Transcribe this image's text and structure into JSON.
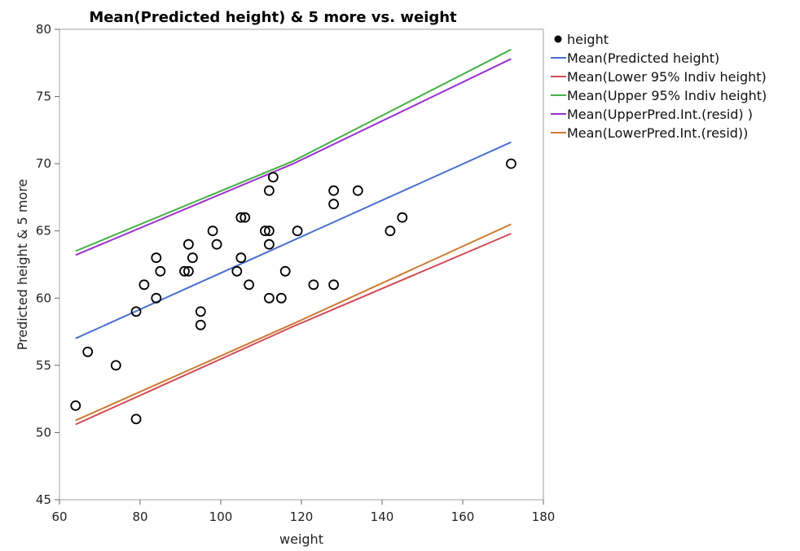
{
  "chart_data": {
    "type": "scatter",
    "title": "Mean(Predicted height) & 5 more vs. weight",
    "xlabel": "weight",
    "ylabel": "Predicted height & 5 more",
    "xlim": [
      60,
      180
    ],
    "ylim": [
      45,
      80
    ],
    "xticks": [
      60,
      80,
      100,
      120,
      140,
      160,
      180
    ],
    "yticks": [
      45,
      50,
      55,
      60,
      65,
      70,
      75,
      80
    ],
    "grid": false,
    "legend_position": "right",
    "series": [
      {
        "name": "height",
        "kind": "points",
        "color": "#000000",
        "x": [
          64,
          67,
          74,
          79,
          79,
          81,
          84,
          84,
          85,
          91,
          92,
          92,
          93,
          95,
          95,
          98,
          99,
          104,
          105,
          105,
          106,
          107,
          111,
          112,
          112,
          112,
          112,
          113,
          115,
          116,
          119,
          123,
          128,
          128,
          128,
          134,
          142,
          145,
          172
        ],
        "y": [
          52,
          56,
          55,
          59,
          51,
          61,
          63,
          60,
          62,
          62,
          64,
          62,
          63,
          59,
          58,
          65,
          64,
          62,
          66,
          63,
          66,
          61,
          65,
          65,
          68,
          64,
          60,
          69,
          60,
          62,
          65,
          61,
          68,
          67,
          61,
          68,
          65,
          66,
          70
        ]
      },
      {
        "name": "Mean(Predicted height)",
        "kind": "line",
        "color": "#4a70d0",
        "x": [
          64,
          172
        ],
        "y": [
          57.0,
          71.6
        ]
      },
      {
        "name": "Mean(Lower 95% Indiv height)",
        "kind": "line",
        "color": "#d04a55",
        "x": [
          64,
          118,
          172
        ],
        "y": [
          50.6,
          57.9,
          64.8
        ]
      },
      {
        "name": "Mean(Upper 95% Indiv height)",
        "kind": "line",
        "color": "#45b045",
        "x": [
          64,
          118,
          172
        ],
        "y": [
          63.5,
          70.2,
          78.5
        ]
      },
      {
        "name": "Mean(UpperPred.Int.(resid) )",
        "kind": "line",
        "color": "#9b30d0",
        "x": [
          64,
          118,
          172
        ],
        "y": [
          63.2,
          70.0,
          77.8
        ]
      },
      {
        "name": "Mean(LowerPred.Int.(resid))",
        "kind": "line",
        "color": "#cc7a30",
        "x": [
          64,
          118,
          172
        ],
        "y": [
          50.9,
          58.1,
          65.5
        ]
      }
    ]
  }
}
